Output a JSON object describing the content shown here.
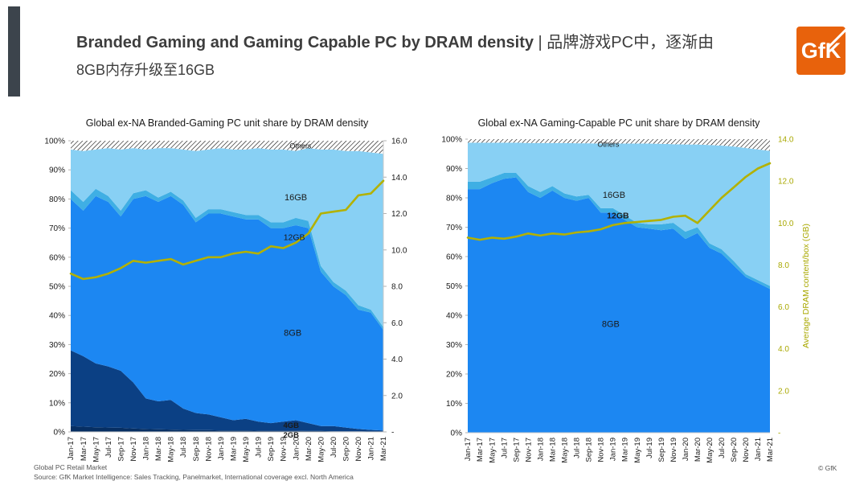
{
  "header": {
    "title_bold": "Branded Gaming and Gaming Capable PC by DRAM density",
    "title_rest": " | 品牌游戏PC中，逐渐由",
    "title_line2": "8GB内存升级至16GB",
    "logo_text": "GfK",
    "logo_color": "#e8620c"
  },
  "footer": {
    "line1": "Global PC Retail Market",
    "line2": "Source: GfK Market Intelligence: Sales Tracking, Panelmarket, International coverage excl. North America",
    "copyright": "© GfK"
  },
  "chart_data": [
    {
      "type": "area",
      "stacked": true,
      "title": "Global ex-NA Branded-Gaming PC unit share by DRAM density",
      "categories": [
        "Jan-17",
        "Mar-17",
        "May-17",
        "Jul-17",
        "Sep-17",
        "Nov-17",
        "Jan-18",
        "Mar-18",
        "May-18",
        "Jul-18",
        "Sep-18",
        "Nov-18",
        "Jan-19",
        "Mar-19",
        "May-19",
        "Jul-19",
        "Sep-19",
        "Nov-19",
        "Jan-20",
        "Mar-20",
        "May-20",
        "Jul-20",
        "Sep-20",
        "Nov-20",
        "Jan-21",
        "Mar-21"
      ],
      "series": [
        {
          "name": "2GB",
          "color": "#072f63",
          "values": [
            2,
            1.8,
            1.6,
            1.5,
            1.4,
            1.2,
            1,
            0.9,
            0.8,
            0.7,
            0.6,
            0.6,
            0.5,
            0.5,
            0.5,
            0.4,
            0.4,
            0.4,
            0.4,
            0.3,
            0.3,
            0.2,
            0.2,
            0.2,
            0.1,
            0.1
          ]
        },
        {
          "name": "4GB",
          "color": "#0b4084",
          "values": [
            26,
            24.2,
            21.9,
            21,
            19.6,
            15.8,
            10.5,
            9.6,
            10.2,
            7.3,
            5.9,
            5.4,
            4.5,
            3.5,
            4,
            3.1,
            2.6,
            3.1,
            3.6,
            2.7,
            1.7,
            1.8,
            1.3,
            0.8,
            0.6,
            0.4
          ]
        },
        {
          "name": "8GB",
          "color": "#1c87f2",
          "values": [
            52,
            50,
            57.5,
            56.5,
            53,
            63,
            69.5,
            68.5,
            70,
            70,
            65.5,
            69,
            70,
            70,
            68.5,
            69.5,
            67,
            66.5,
            67,
            67,
            53,
            48,
            45.5,
            41,
            40.3,
            34.5
          ]
        },
        {
          "name": "12GB",
          "color": "#3fafe4",
          "values": [
            3,
            3,
            2.5,
            2,
            2,
            2,
            2,
            1.5,
            1.5,
            1.5,
            1.5,
            1.5,
            1.5,
            1.5,
            1.5,
            1.5,
            2,
            2,
            2.5,
            2.5,
            2,
            1.5,
            1.5,
            1.5,
            1,
            1
          ]
        },
        {
          "name": "16GB",
          "color": "#88d0f4",
          "values": [
            14,
            17.5,
            13.5,
            16.5,
            21,
            15.5,
            14,
            17,
            15,
            17.5,
            23,
            20.5,
            21,
            21.5,
            22.5,
            23,
            25,
            25,
            23,
            25,
            40,
            45.5,
            48,
            53,
            54,
            59.5
          ]
        },
        {
          "name": "Others",
          "pattern": "hatch",
          "values": [
            3,
            3.5,
            3,
            2.5,
            3,
            2.5,
            3,
            2.5,
            2.5,
            3,
            3.5,
            3,
            2.5,
            3,
            3,
            2.5,
            3,
            3,
            3.5,
            2.5,
            3,
            3,
            3.5,
            3.5,
            4,
            4.5
          ]
        }
      ],
      "line_series": {
        "name": "Average DRAM content/box (GB)",
        "color": "#b3b100",
        "values": [
          8.7,
          8.4,
          8.5,
          8.7,
          9.0,
          9.4,
          9.3,
          9.4,
          9.5,
          9.2,
          9.4,
          9.6,
          9.6,
          9.8,
          9.9,
          9.8,
          10.2,
          10.1,
          10.4,
          10.9,
          12.0,
          12.1,
          12.2,
          13.0,
          13.1,
          13.8
        ]
      },
      "left_axis": {
        "min": 0,
        "max": 100,
        "ticks": [
          "100%",
          "90%",
          "80%",
          "70%",
          "60%",
          "50%",
          "40%",
          "30%",
          "20%",
          "10%",
          "0%"
        ]
      },
      "right_axis": {
        "min": 0,
        "max": 16,
        "ticks": [
          "16.0",
          "14.0",
          "12.0",
          "10.0",
          "8.0",
          "6.0",
          "4.0",
          "2.0",
          "-"
        ],
        "color": "#1a1a1a",
        "show_line": true,
        "title": ""
      },
      "labels": [
        {
          "text": "Others",
          "fx": 0.735,
          "y": 98.3,
          "size": 9,
          "bold": false
        },
        {
          "text": "16GB",
          "fx": 0.72,
          "y": 80.5,
          "size": 11,
          "bold": false
        },
        {
          "text": "12GB",
          "fx": 0.715,
          "y": 66.8,
          "size": 10.5,
          "bold": false
        },
        {
          "text": "8GB",
          "fx": 0.71,
          "y": 34,
          "size": 11,
          "bold": false
        },
        {
          "text": "4GB",
          "fx": 0.705,
          "y": 2.3,
          "size": 9.5,
          "bold": true
        },
        {
          "text": "2GB",
          "fx": 0.705,
          "y": -0.9,
          "size": 9.5,
          "bold": true
        }
      ]
    },
    {
      "type": "area",
      "stacked": true,
      "title": "Global ex-NA Gaming-Capable PC unit share by DRAM density",
      "categories": [
        "Jan-17",
        "Mar-17",
        "May-17",
        "Jul-17",
        "Sep-17",
        "Nov-17",
        "Jan-18",
        "Mar-18",
        "May-18",
        "Jul-18",
        "Sep-18",
        "Nov-18",
        "Jan-19",
        "Mar-19",
        "May-19",
        "Jul-19",
        "Sep-19",
        "Nov-19",
        "Jan-20",
        "Mar-20",
        "May-20",
        "Jul-20",
        "Sep-20",
        "Nov-20",
        "Jan-21",
        "Mar-21"
      ],
      "series": [
        {
          "name": "8GB",
          "color": "#1c87f2",
          "values": [
            83,
            83,
            85,
            86.5,
            87,
            82,
            80,
            82.5,
            80,
            79,
            80,
            75,
            75,
            72.5,
            70,
            69.5,
            69,
            69.5,
            66,
            68,
            63,
            61,
            57,
            53,
            51,
            49
          ]
        },
        {
          "name": "12GB",
          "color": "#3fafe4",
          "values": [
            2.5,
            2.5,
            2,
            2,
            1.5,
            2,
            2,
            1.5,
            1.5,
            1.5,
            1,
            1.5,
            1.5,
            1.5,
            1.5,
            1.5,
            2,
            2,
            2.5,
            2,
            1.5,
            1.5,
            1.5,
            1,
            1,
            1
          ]
        },
        {
          "name": "16GB",
          "color": "#88d0f4",
          "values": [
            13.3,
            13.3,
            11.8,
            10.3,
            10.3,
            14.7,
            16.7,
            14.7,
            17.2,
            18.1,
            17.6,
            22,
            22,
            24.5,
            27,
            27.5,
            27.4,
            26.8,
            29.7,
            28.2,
            33.5,
            35.3,
            39,
            43,
            44.5,
            46
          ]
        },
        {
          "name": "Others",
          "pattern": "hatch",
          "values": [
            1.2,
            1.2,
            1.2,
            1.2,
            1.2,
            1.3,
            1.3,
            1.3,
            1.3,
            1.4,
            1.4,
            1.5,
            1.5,
            1.5,
            1.5,
            1.5,
            1.6,
            1.7,
            1.8,
            1.8,
            2,
            2.2,
            2.5,
            3,
            3.5,
            4
          ]
        }
      ],
      "line_series": {
        "name": "Average DRAM content/box (GB)",
        "color": "#b3b100",
        "values": [
          9.3,
          9.2,
          9.3,
          9.25,
          9.35,
          9.5,
          9.4,
          9.5,
          9.45,
          9.55,
          9.6,
          9.7,
          9.9,
          10.0,
          10.05,
          10.1,
          10.15,
          10.3,
          10.35,
          10.0,
          10.6,
          11.2,
          11.7,
          12.2,
          12.6,
          12.85
        ]
      },
      "left_axis": {
        "min": 0,
        "max": 100,
        "ticks": [
          "100%",
          "90%",
          "80%",
          "70%",
          "60%",
          "50%",
          "40%",
          "30%",
          "20%",
          "10%",
          "0%"
        ]
      },
      "right_axis": {
        "min": 0,
        "max": 14,
        "ticks": [
          "14.0",
          "12.0",
          "10.0",
          "8.0",
          "6.0",
          "4.0",
          "2.0",
          "-"
        ],
        "color": "#a9a800",
        "show_line": false,
        "title": "Average DRAM content/box (GB)"
      },
      "labels": [
        {
          "text": "Others",
          "fx": 0.465,
          "y": 98.4,
          "size": 9,
          "bold": false
        },
        {
          "text": "16GB",
          "fx": 0.484,
          "y": 81,
          "size": 11,
          "bold": false
        },
        {
          "text": "12GB",
          "fx": 0.497,
          "y": 74,
          "size": 10.5,
          "bold": true
        },
        {
          "text": "8GB",
          "fx": 0.473,
          "y": 37,
          "size": 11,
          "bold": false
        }
      ]
    }
  ]
}
